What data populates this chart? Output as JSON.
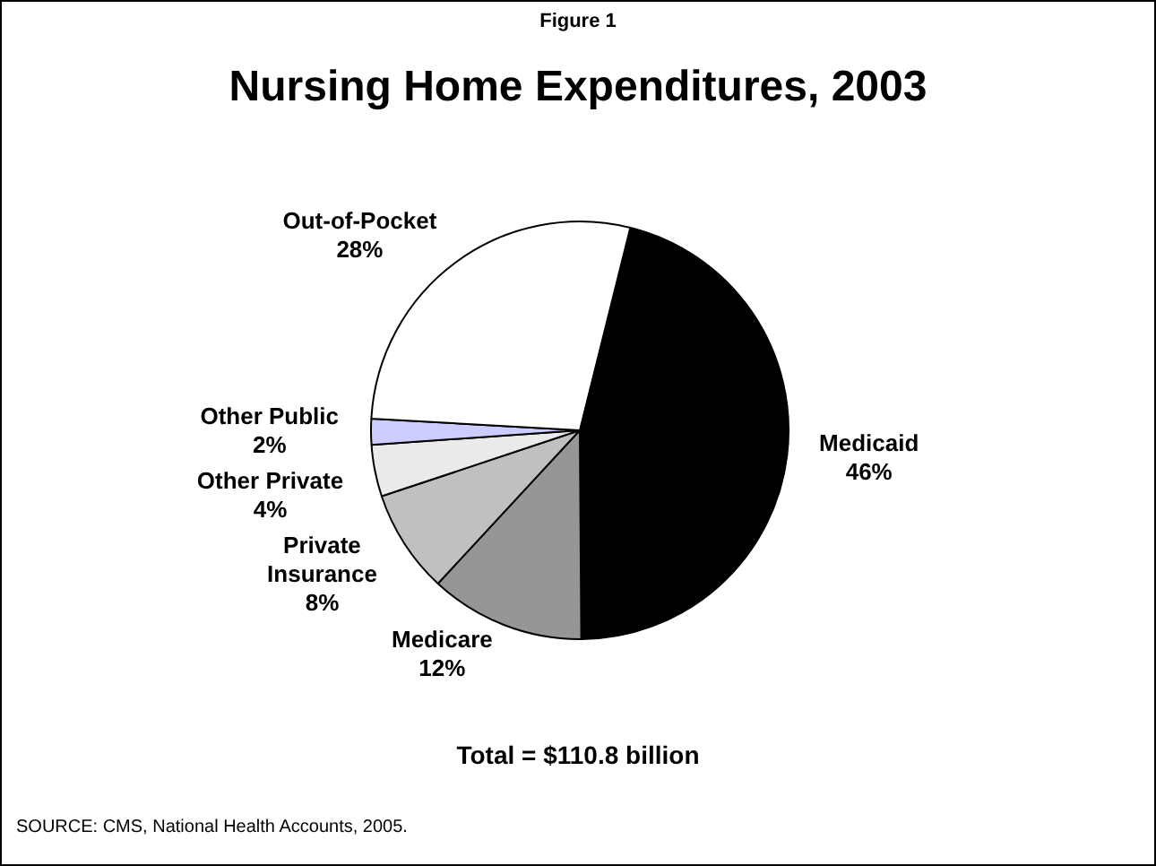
{
  "chart_data": {
    "type": "pie",
    "title": "Nursing Home Expenditures, 2003",
    "subtitle": "Figure 1",
    "categories": [
      "Medicaid",
      "Medicare",
      "Private Insurance",
      "Other Private",
      "Other Public",
      "Out-of-Pocket"
    ],
    "values": [
      46,
      12,
      8,
      4,
      2,
      28
    ],
    "value_labels": [
      "46%",
      "12%",
      "8%",
      "4%",
      "2%",
      "28%"
    ],
    "colors": [
      "#000000",
      "#969696",
      "#c0c0c0",
      "#eaeaea",
      "#ccccff",
      "#ffffff"
    ],
    "legend": false,
    "annotations": [
      "Total = $110.8 billion",
      "SOURCE: CMS, National Health Accounts, 2005."
    ]
  }
}
